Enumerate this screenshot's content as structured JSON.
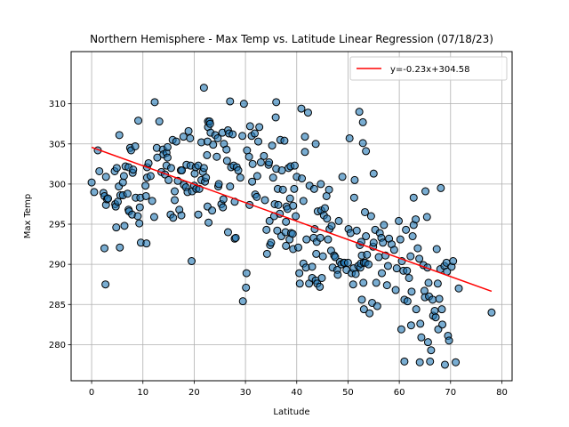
{
  "chart_data": {
    "type": "scatter",
    "title": "Northern Hemisphere - Max Temp vs. Latitude Linear Regression (07/18/23)",
    "xlabel": "Latitude",
    "ylabel": "Max Temp",
    "xlim": [
      -4,
      82
    ],
    "ylim": [
      275.5,
      316.5
    ],
    "xticks": [
      0,
      10,
      20,
      30,
      40,
      50,
      60,
      70,
      80
    ],
    "yticks": [
      280,
      285,
      290,
      295,
      300,
      305,
      310
    ],
    "grid": true,
    "legend_position": "upper right",
    "colors": {
      "points": "#1f77b4",
      "edge": "#000000",
      "line": "#ff0000"
    },
    "regression": {
      "label": "y=-0.23x+304.58",
      "slope": -0.23,
      "intercept": 304.58,
      "x_range": [
        0,
        78
      ]
    },
    "points": [
      [
        0.0,
        300.2
      ],
      [
        0.5,
        299.0
      ],
      [
        1.2,
        304.2
      ],
      [
        1.5,
        301.6
      ],
      [
        2.3,
        298.9
      ],
      [
        2.5,
        298.5
      ],
      [
        2.5,
        292.0
      ],
      [
        2.7,
        287.5
      ],
      [
        2.8,
        300.9
      ],
      [
        2.8,
        297.4
      ],
      [
        3.0,
        298.1
      ],
      [
        3.2,
        298.2
      ],
      [
        4.5,
        301.6
      ],
      [
        4.6,
        297.5
      ],
      [
        4.7,
        297.2
      ],
      [
        4.8,
        294.6
      ],
      [
        4.9,
        302.0
      ],
      [
        5.1,
        297.8
      ],
      [
        5.3,
        299.7
      ],
      [
        5.4,
        306.1
      ],
      [
        5.5,
        292.1
      ],
      [
        5.6,
        298.6
      ],
      [
        6.1,
        298.6
      ],
      [
        6.1,
        300.2
      ],
      [
        6.3,
        301.0
      ],
      [
        6.4,
        294.8
      ],
      [
        6.6,
        302.2
      ],
      [
        7.0,
        298.8
      ],
      [
        7.2,
        302.1
      ],
      [
        7.2,
        296.8
      ],
      [
        7.3,
        296.6
      ],
      [
        7.5,
        304.5
      ],
      [
        7.7,
        304.2
      ],
      [
        7.9,
        296.2
      ],
      [
        8.0,
        301.4
      ],
      [
        8.1,
        301.8
      ],
      [
        8.5,
        304.7
      ],
      [
        8.6,
        298.3
      ],
      [
        9.0,
        296.0
      ],
      [
        9.1,
        307.9
      ],
      [
        9.3,
        295.1
      ],
      [
        9.4,
        297.1
      ],
      [
        9.5,
        298.3
      ],
      [
        9.6,
        292.7
      ],
      [
        10.5,
        299.8
      ],
      [
        10.6,
        298.5
      ],
      [
        10.7,
        292.6
      ],
      [
        10.8,
        302.1
      ],
      [
        10.8,
        300.8
      ],
      [
        11.1,
        302.6
      ],
      [
        11.5,
        301.0
      ],
      [
        11.8,
        297.9
      ],
      [
        12.2,
        295.9
      ],
      [
        12.3,
        310.2
      ],
      [
        12.7,
        304.5
      ],
      [
        12.8,
        303.3
      ],
      [
        13.2,
        307.8
      ],
      [
        13.6,
        301.5
      ],
      [
        13.9,
        304.3
      ],
      [
        14.0,
        303.7
      ],
      [
        14.3,
        301.2
      ],
      [
        14.6,
        303.9
      ],
      [
        14.6,
        302.3
      ],
      [
        14.8,
        303.3
      ],
      [
        14.8,
        304.6
      ],
      [
        15.0,
        300.5
      ],
      [
        15.4,
        296.2
      ],
      [
        15.5,
        302.0
      ],
      [
        15.8,
        305.5
      ],
      [
        15.9,
        295.8
      ],
      [
        16.2,
        299.1
      ],
      [
        16.2,
        298.0
      ],
      [
        16.5,
        305.3
      ],
      [
        16.8,
        300.4
      ],
      [
        17.1,
        296.8
      ],
      [
        17.4,
        301.7
      ],
      [
        17.5,
        296.1
      ],
      [
        17.6,
        301.7
      ],
      [
        17.9,
        305.9
      ],
      [
        18.0,
        299.9
      ],
      [
        18.4,
        299.6
      ],
      [
        18.5,
        302.4
      ],
      [
        18.7,
        299.0
      ],
      [
        18.9,
        306.6
      ],
      [
        19.2,
        305.7
      ],
      [
        19.3,
        302.3
      ],
      [
        19.5,
        290.4
      ],
      [
        19.6,
        299.1
      ],
      [
        20.0,
        299.8
      ],
      [
        20.1,
        301.3
      ],
      [
        20.3,
        302.1
      ],
      [
        20.4,
        299.4
      ],
      [
        20.8,
        296.2
      ],
      [
        20.8,
        302.3
      ],
      [
        21.0,
        299.4
      ],
      [
        21.4,
        300.5
      ],
      [
        21.4,
        305.2
      ],
      [
        21.7,
        301.5
      ],
      [
        21.9,
        302.0
      ],
      [
        21.9,
        312.0
      ],
      [
        22.1,
        300.3
      ],
      [
        22.3,
        300.8
      ],
      [
        22.5,
        303.6
      ],
      [
        22.6,
        305.3
      ],
      [
        22.6,
        297.2
      ],
      [
        22.7,
        307.1
      ],
      [
        22.7,
        307.8
      ],
      [
        22.8,
        295.2
      ],
      [
        23.0,
        307.8
      ],
      [
        23.1,
        307.5
      ],
      [
        23.2,
        306.4
      ],
      [
        23.5,
        296.7
      ],
      [
        23.7,
        304.9
      ],
      [
        24.1,
        306.1
      ],
      [
        24.4,
        303.4
      ],
      [
        24.6,
        305.7
      ],
      [
        24.7,
        299.7
      ],
      [
        24.8,
        300.0
      ],
      [
        25.3,
        297.5
      ],
      [
        25.5,
        306.4
      ],
      [
        25.6,
        297.1
      ],
      [
        25.7,
        298.1
      ],
      [
        25.8,
        305.0
      ],
      [
        26.3,
        304.3
      ],
      [
        26.4,
        302.9
      ],
      [
        26.6,
        294.0
      ],
      [
        26.6,
        306.7
      ],
      [
        26.8,
        306.3
      ],
      [
        27.0,
        299.7
      ],
      [
        27.0,
        310.3
      ],
      [
        27.2,
        302.1
      ],
      [
        27.5,
        306.2
      ],
      [
        27.7,
        302.3
      ],
      [
        27.9,
        293.2
      ],
      [
        27.9,
        297.8
      ],
      [
        28.1,
        293.3
      ],
      [
        28.3,
        302.1
      ],
      [
        28.6,
        301.7
      ],
      [
        29.0,
        300.8
      ],
      [
        29.4,
        306.0
      ],
      [
        29.5,
        285.4
      ],
      [
        29.7,
        310.0
      ],
      [
        30.1,
        287.1
      ],
      [
        30.2,
        288.9
      ],
      [
        30.3,
        304.2
      ],
      [
        30.7,
        303.4
      ],
      [
        30.8,
        297.4
      ],
      [
        30.9,
        307.2
      ],
      [
        31.2,
        306.0
      ],
      [
        31.3,
        300.3
      ],
      [
        31.4,
        302.5
      ],
      [
        31.8,
        306.3
      ],
      [
        31.9,
        298.7
      ],
      [
        32.2,
        298.4
      ],
      [
        32.3,
        301.0
      ],
      [
        32.5,
        305.3
      ],
      [
        32.7,
        307.1
      ],
      [
        33.0,
        302.7
      ],
      [
        33.6,
        303.5
      ],
      [
        33.8,
        298.0
      ],
      [
        34.1,
        294.3
      ],
      [
        34.2,
        291.3
      ],
      [
        34.5,
        302.4
      ],
      [
        34.6,
        302.7
      ],
      [
        34.7,
        295.4
      ],
      [
        34.8,
        292.4
      ],
      [
        35.0,
        292.7
      ],
      [
        35.2,
        304.8
      ],
      [
        35.4,
        300.8
      ],
      [
        35.6,
        296.0
      ],
      [
        35.7,
        297.5
      ],
      [
        35.9,
        308.3
      ],
      [
        36.0,
        310.2
      ],
      [
        36.0,
        301.9
      ],
      [
        36.2,
        294.2
      ],
      [
        36.3,
        299.4
      ],
      [
        36.4,
        297.4
      ],
      [
        36.7,
        296.3
      ],
      [
        36.8,
        305.5
      ],
      [
        37.0,
        293.5
      ],
      [
        37.1,
        301.7
      ],
      [
        37.3,
        299.3
      ],
      [
        37.6,
        305.4
      ],
      [
        37.8,
        294.0
      ],
      [
        37.9,
        292.3
      ],
      [
        37.9,
        295.3
      ],
      [
        38.0,
        297.2
      ],
      [
        38.2,
        296.9
      ],
      [
        38.4,
        302.0
      ],
      [
        38.6,
        293.1
      ],
      [
        38.7,
        298.2
      ],
      [
        38.8,
        302.2
      ],
      [
        38.9,
        293.9
      ],
      [
        39.2,
        293.8
      ],
      [
        39.3,
        297.3
      ],
      [
        39.3,
        291.9
      ],
      [
        39.5,
        299.4
      ],
      [
        39.6,
        302.3
      ],
      [
        39.8,
        296.0
      ],
      [
        40.0,
        300.9
      ],
      [
        40.3,
        292.1
      ],
      [
        40.5,
        288.9
      ],
      [
        40.6,
        287.6
      ],
      [
        40.9,
        309.4
      ],
      [
        41.0,
        300.7
      ],
      [
        41.3,
        290.1
      ],
      [
        41.3,
        297.9
      ],
      [
        41.6,
        304.0
      ],
      [
        41.6,
        305.9
      ],
      [
        41.8,
        289.6
      ],
      [
        41.9,
        293.1
      ],
      [
        42.2,
        308.9
      ],
      [
        42.4,
        287.6
      ],
      [
        42.5,
        299.8
      ],
      [
        43.0,
        288.3
      ],
      [
        43.0,
        289.7
      ],
      [
        43.3,
        293.3
      ],
      [
        43.4,
        299.4
      ],
      [
        43.5,
        294.4
      ],
      [
        43.7,
        288.0
      ],
      [
        43.7,
        305.0
      ],
      [
        43.8,
        291.3
      ],
      [
        43.9,
        292.8
      ],
      [
        44.0,
        287.6
      ],
      [
        44.1,
        296.6
      ],
      [
        44.5,
        287.2
      ],
      [
        44.6,
        293.3
      ],
      [
        44.7,
        300.0
      ],
      [
        44.8,
        296.7
      ],
      [
        44.9,
        288.3
      ],
      [
        45.1,
        291.0
      ],
      [
        45.3,
        296.1
      ],
      [
        45.5,
        297.0
      ],
      [
        45.8,
        298.5
      ],
      [
        45.9,
        295.7
      ],
      [
        46.1,
        293.1
      ],
      [
        46.3,
        299.3
      ],
      [
        46.4,
        294.4
      ],
      [
        46.7,
        291.7
      ],
      [
        46.8,
        294.8
      ],
      [
        47.0,
        289.6
      ],
      [
        47.3,
        291.1
      ],
      [
        47.5,
        290.9
      ],
      [
        47.9,
        289.3
      ],
      [
        48.0,
        288.7
      ],
      [
        48.2,
        295.4
      ],
      [
        48.4,
        290.3
      ],
      [
        48.7,
        290.0
      ],
      [
        48.9,
        300.9
      ],
      [
        49.2,
        290.2
      ],
      [
        49.3,
        290.2
      ],
      [
        49.7,
        289.3
      ],
      [
        50.0,
        290.2
      ],
      [
        50.1,
        294.4
      ],
      [
        50.3,
        305.7
      ],
      [
        50.5,
        293.9
      ],
      [
        50.7,
        288.9
      ],
      [
        51.0,
        287.5
      ],
      [
        51.1,
        289.5
      ],
      [
        51.2,
        298.3
      ],
      [
        51.3,
        300.5
      ],
      [
        51.5,
        288.8
      ],
      [
        51.7,
        294.2
      ],
      [
        52.0,
        289.8
      ],
      [
        52.2,
        309.0
      ],
      [
        52.3,
        292.4
      ],
      [
        52.4,
        289.6
      ],
      [
        52.5,
        290.1
      ],
      [
        52.6,
        292.8
      ],
      [
        52.7,
        291.1
      ],
      [
        52.7,
        285.6
      ],
      [
        52.9,
        307.7
      ],
      [
        52.9,
        305.1
      ],
      [
        53.0,
        287.7
      ],
      [
        53.1,
        284.4
      ],
      [
        53.1,
        290.2
      ],
      [
        53.3,
        296.5
      ],
      [
        53.4,
        290.2
      ],
      [
        53.5,
        293.5
      ],
      [
        53.5,
        304.1
      ],
      [
        53.7,
        291.2
      ],
      [
        54.0,
        290.0
      ],
      [
        54.2,
        283.9
      ],
      [
        54.5,
        296.0
      ],
      [
        54.7,
        285.2
      ],
      [
        54.9,
        292.2
      ],
      [
        55.0,
        301.3
      ],
      [
        55.0,
        292.7
      ],
      [
        55.3,
        294.3
      ],
      [
        55.5,
        287.7
      ],
      [
        55.7,
        284.8
      ],
      [
        56.0,
        290.9
      ],
      [
        56.2,
        293.9
      ],
      [
        56.5,
        293.3
      ],
      [
        56.6,
        288.9
      ],
      [
        56.8,
        292.7
      ],
      [
        57.0,
        294.9
      ],
      [
        57.3,
        291.1
      ],
      [
        57.6,
        287.4
      ],
      [
        57.8,
        289.8
      ],
      [
        58.0,
        293.2
      ],
      [
        58.5,
        292.5
      ],
      [
        59.0,
        291.8
      ],
      [
        59.3,
        286.8
      ],
      [
        59.5,
        289.5
      ],
      [
        59.9,
        295.4
      ],
      [
        60.2,
        293.1
      ],
      [
        60.4,
        281.9
      ],
      [
        60.5,
        290.4
      ],
      [
        60.8,
        289.2
      ],
      [
        61.0,
        285.6
      ],
      [
        61.0,
        277.9
      ],
      [
        61.3,
        294.3
      ],
      [
        61.5,
        289.2
      ],
      [
        61.6,
        285.4
      ],
      [
        61.9,
        288.3
      ],
      [
        62.2,
        291.0
      ],
      [
        62.3,
        282.4
      ],
      [
        62.4,
        286.6
      ],
      [
        62.6,
        293.5
      ],
      [
        62.8,
        294.9
      ],
      [
        62.8,
        298.3
      ],
      [
        63.2,
        295.6
      ],
      [
        63.3,
        284.4
      ],
      [
        63.6,
        292.0
      ],
      [
        63.9,
        290.7
      ],
      [
        64.0,
        277.8
      ],
      [
        64.1,
        282.6
      ],
      [
        64.3,
        280.9
      ],
      [
        64.7,
        289.9
      ],
      [
        64.9,
        286.7
      ],
      [
        65.0,
        285.9
      ],
      [
        65.1,
        299.1
      ],
      [
        65.4,
        295.9
      ],
      [
        65.5,
        289.6
      ],
      [
        65.6,
        280.3
      ],
      [
        65.7,
        287.7
      ],
      [
        65.8,
        286.0
      ],
      [
        66.0,
        277.9
      ],
      [
        66.2,
        279.3
      ],
      [
        66.5,
        285.6
      ],
      [
        66.6,
        283.6
      ],
      [
        66.9,
        284.2
      ],
      [
        67.1,
        283.4
      ],
      [
        67.3,
        291.9
      ],
      [
        67.5,
        287.6
      ],
      [
        67.6,
        281.9
      ],
      [
        67.8,
        285.7
      ],
      [
        68.0,
        289.4
      ],
      [
        68.1,
        299.5
      ],
      [
        68.3,
        284.4
      ],
      [
        68.4,
        282.5
      ],
      [
        68.8,
        289.8
      ],
      [
        68.9,
        277.5
      ],
      [
        69.2,
        290.2
      ],
      [
        69.3,
        289.1
      ],
      [
        69.5,
        281.1
      ],
      [
        69.7,
        280.5
      ],
      [
        70.2,
        289.7
      ],
      [
        70.5,
        290.4
      ],
      [
        71.0,
        277.8
      ],
      [
        71.6,
        287.0
      ],
      [
        78.0,
        284.0
      ]
    ]
  }
}
